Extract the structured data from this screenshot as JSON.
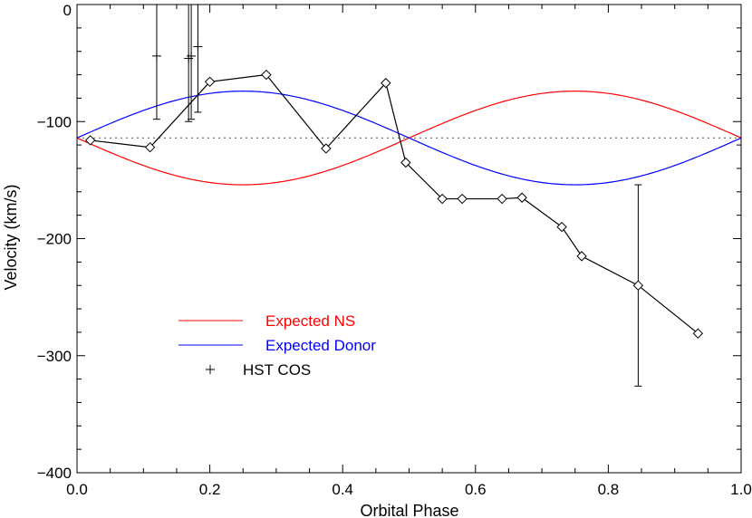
{
  "chart_data": {
    "type": "line",
    "title": "",
    "xlabel": "Orbital Phase",
    "ylabel": "Velocity (km/s)",
    "xlim": [
      0.0,
      1.0
    ],
    "ylim": [
      -400,
      0
    ],
    "x_ticks": [
      0.0,
      0.2,
      0.4,
      0.6,
      0.8,
      1.0
    ],
    "x_tick_labels": [
      "0.0",
      "0.2",
      "0.4",
      "0.6",
      "0.8",
      "1.0"
    ],
    "y_ticks": [
      0,
      -100,
      -200,
      -300,
      -400
    ],
    "y_tick_labels": [
      "0",
      "−100",
      "−200",
      "−300",
      "−400"
    ],
    "grid": false,
    "legend_position": "lower-left",
    "systemic_velocity": -114,
    "series": [
      {
        "name": "Expected NS",
        "kind": "model-curve",
        "color": "#ff0000",
        "gamma": -114,
        "amplitude": 40,
        "phase_sign": -1
      },
      {
        "name": "Expected Donor",
        "kind": "model-curve",
        "color": "#0000ff",
        "gamma": -114,
        "amplitude": 40,
        "phase_sign": 1
      },
      {
        "name": "",
        "kind": "measurements",
        "color": "#000000",
        "marker": "diamond",
        "x": [
          0.02,
          0.11,
          0.2,
          0.285,
          0.375,
          0.465,
          0.495,
          0.55,
          0.58,
          0.64,
          0.67,
          0.73,
          0.76,
          0.845,
          0.935
        ],
        "y": [
          -116,
          -122,
          -66,
          -60,
          -123,
          -67,
          -135,
          -166,
          -166,
          -166,
          -165,
          -190,
          -215,
          -240,
          -281
        ],
        "error_bars": [
          {
            "x": 0.845,
            "low": -326,
            "high": -154
          }
        ]
      },
      {
        "name": "HST COS",
        "kind": "points",
        "color": "#000000",
        "marker": "plus",
        "x": [
          0.12,
          0.168,
          0.172,
          0.182
        ],
        "y": [
          -44,
          -46,
          -44,
          -36
        ],
        "error_low": [
          -98,
          -100,
          -98,
          -92
        ],
        "error_high": [
          0,
          0,
          0,
          0
        ]
      }
    ]
  }
}
